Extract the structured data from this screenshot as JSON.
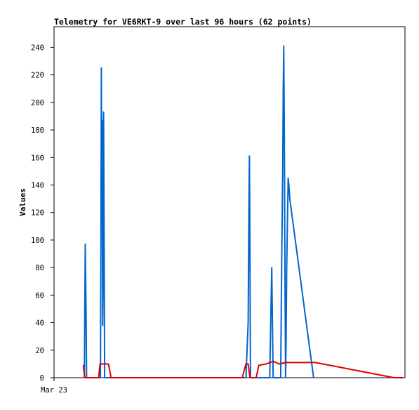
{
  "chart_data": {
    "type": "line",
    "title": "Telemetry for VE6RKT-9 over last 96 hours (62 points)",
    "xlabel": "",
    "ylabel": "Values",
    "x_unit": "hours since start of plotted window",
    "xlim": [
      0,
      96
    ],
    "ylim": [
      0,
      255
    ],
    "x_tick_labels": [
      {
        "x": 0,
        "label": "Mar 23"
      }
    ],
    "y_ticks": [
      0,
      20,
      40,
      60,
      80,
      100,
      120,
      140,
      160,
      180,
      200,
      220,
      240
    ],
    "grid": false,
    "legend": "none",
    "series": [
      {
        "color": "#0066cc",
        "points": [
          [
            8.3,
            0
          ],
          [
            8.55,
            97
          ],
          [
            8.75,
            48
          ],
          [
            8.9,
            0
          ],
          [
            12.7,
            0
          ],
          [
            12.85,
            112
          ],
          [
            12.95,
            225
          ],
          [
            13.05,
            112
          ],
          [
            13.15,
            187
          ],
          [
            13.3,
            38
          ],
          [
            13.45,
            96
          ],
          [
            13.55,
            193
          ],
          [
            13.7,
            96
          ],
          [
            13.85,
            0
          ],
          [
            52.5,
            0
          ],
          [
            53.1,
            40
          ],
          [
            53.3,
            120
          ],
          [
            53.45,
            161
          ],
          [
            53.6,
            80
          ],
          [
            53.75,
            0
          ],
          [
            59.0,
            0
          ],
          [
            59.35,
            50
          ],
          [
            59.55,
            80
          ],
          [
            59.75,
            40
          ],
          [
            59.95,
            0
          ],
          [
            62.0,
            0
          ],
          [
            62.3,
            90
          ],
          [
            62.55,
            150
          ],
          [
            62.7,
            211
          ],
          [
            62.85,
            241
          ],
          [
            63.0,
            180
          ],
          [
            63.2,
            60
          ],
          [
            63.35,
            0
          ],
          [
            63.5,
            30
          ],
          [
            63.65,
            80
          ],
          [
            63.9,
            120
          ],
          [
            64.05,
            145
          ],
          [
            64.25,
            140
          ],
          [
            64.5,
            130
          ],
          [
            71.0,
            0
          ]
        ]
      },
      {
        "color": "#dd0000",
        "points": [
          [
            8.0,
            9
          ],
          [
            8.4,
            0
          ],
          [
            12.2,
            0
          ],
          [
            12.6,
            10
          ],
          [
            14.9,
            10
          ],
          [
            15.6,
            0
          ],
          [
            51.5,
            0
          ],
          [
            52.5,
            10
          ],
          [
            53.1,
            10
          ],
          [
            53.6,
            0
          ],
          [
            55.3,
            0
          ],
          [
            56.0,
            9
          ],
          [
            58.0,
            10
          ],
          [
            60.0,
            12
          ],
          [
            61.5,
            10
          ],
          [
            63.5,
            11
          ],
          [
            66.0,
            11
          ],
          [
            71.5,
            11
          ],
          [
            93.0,
            0
          ],
          [
            95.5,
            0
          ]
        ]
      }
    ]
  }
}
